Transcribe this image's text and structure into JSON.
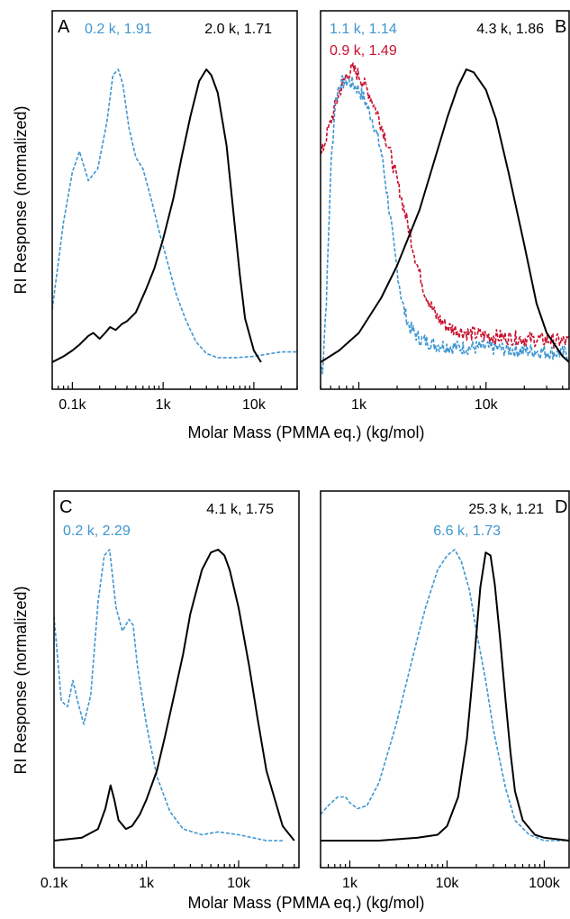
{
  "colors": {
    "black": "#000000",
    "blue": "#3e96d1",
    "red": "#c8102e"
  },
  "figure": {
    "x_label": "Molar Mass (PMMA eq.) (kg/mol)",
    "y_label": "RI Response (normalized)"
  },
  "chart_data": [
    {
      "panel": "A",
      "type": "line",
      "xscale": "log",
      "xlim": [
        0.06,
        30
      ],
      "ylim": [
        0,
        1
      ],
      "xticks": [
        {
          "v": 0.1,
          "label": "0.1k"
        },
        {
          "v": 1,
          "label": "1k"
        },
        {
          "v": 10,
          "label": "10k"
        }
      ],
      "annotations": [
        {
          "text": "0.2 k, 1.91",
          "color": "blue",
          "pos": "left"
        },
        {
          "text": "2.0 k, 1.71",
          "color": "black",
          "pos": "right"
        }
      ],
      "series": [
        {
          "color": "blue",
          "style": "dashed",
          "x": [
            0.06,
            0.08,
            0.1,
            0.12,
            0.15,
            0.19,
            0.24,
            0.28,
            0.32,
            0.36,
            0.42,
            0.5,
            0.6,
            0.75,
            0.9,
            1.1,
            1.4,
            1.8,
            2.3,
            3,
            4,
            6,
            10,
            20,
            30
          ],
          "y": [
            0.18,
            0.48,
            0.65,
            0.72,
            0.62,
            0.66,
            0.82,
            0.98,
            1.0,
            0.95,
            0.8,
            0.7,
            0.66,
            0.55,
            0.45,
            0.35,
            0.23,
            0.14,
            0.07,
            0.03,
            0.015,
            0.015,
            0.02,
            0.035,
            0.035
          ]
        },
        {
          "color": "black",
          "style": "solid",
          "x": [
            0.06,
            0.08,
            0.1,
            0.12,
            0.15,
            0.17,
            0.2,
            0.23,
            0.26,
            0.3,
            0.35,
            0.4,
            0.5,
            0.65,
            0.8,
            1,
            1.3,
            1.6,
            2,
            2.5,
            3,
            3.4,
            4,
            5,
            6,
            7,
            8,
            10,
            12
          ],
          "y": [
            0.0,
            0.02,
            0.04,
            0.06,
            0.09,
            0.1,
            0.08,
            0.1,
            0.12,
            0.11,
            0.13,
            0.14,
            0.17,
            0.25,
            0.32,
            0.42,
            0.56,
            0.7,
            0.84,
            0.96,
            1.0,
            0.98,
            0.92,
            0.74,
            0.5,
            0.3,
            0.15,
            0.04,
            0.0
          ]
        }
      ]
    },
    {
      "panel": "B",
      "type": "line",
      "xscale": "log",
      "xlim": [
        0.5,
        45
      ],
      "ylim": [
        0,
        1
      ],
      "xticks": [
        {
          "v": 1,
          "label": "1k"
        },
        {
          "v": 10,
          "label": "10k"
        }
      ],
      "annotations": [
        {
          "text": "1.1 k, 1.14",
          "color": "blue",
          "pos": "left"
        },
        {
          "text": "0.9 k, 1.49",
          "color": "red",
          "pos": "left2"
        },
        {
          "text": "4.3 k, 1.86",
          "color": "black",
          "pos": "right"
        }
      ],
      "series": [
        {
          "color": "blue",
          "style": "dashed",
          "noisy": true,
          "x": [
            0.52,
            0.56,
            0.6,
            0.65,
            0.7,
            0.8,
            0.9,
            1.0,
            1.1,
            1.3,
            1.5,
            1.7,
            1.9,
            2.2,
            2.5,
            3,
            4,
            6,
            10,
            20,
            45
          ],
          "y": [
            -0.02,
            0.25,
            0.65,
            0.88,
            0.95,
            0.96,
            0.95,
            0.93,
            0.9,
            0.82,
            0.72,
            0.55,
            0.38,
            0.2,
            0.12,
            0.08,
            0.06,
            0.05,
            0.05,
            0.04,
            0.03
          ]
        },
        {
          "color": "red",
          "style": "dashed",
          "noisy": true,
          "x": [
            0.5,
            0.6,
            0.7,
            0.8,
            0.9,
            1.0,
            1.2,
            1.4,
            1.7,
            2.0,
            2.4,
            2.8,
            3.3,
            4,
            5,
            7,
            10,
            20,
            45
          ],
          "y": [
            0.7,
            0.82,
            0.92,
            0.98,
            1.0,
            0.98,
            0.92,
            0.85,
            0.74,
            0.62,
            0.48,
            0.35,
            0.24,
            0.16,
            0.12,
            0.1,
            0.09,
            0.08,
            0.07
          ]
        },
        {
          "color": "black",
          "style": "solid",
          "x": [
            0.5,
            0.7,
            1,
            1.5,
            2,
            3,
            4,
            5,
            6,
            7,
            8,
            10,
            12,
            15,
            20,
            25,
            30,
            40,
            45
          ],
          "y": [
            0.0,
            0.04,
            0.1,
            0.22,
            0.33,
            0.52,
            0.7,
            0.84,
            0.94,
            1.0,
            0.99,
            0.93,
            0.83,
            0.65,
            0.4,
            0.2,
            0.1,
            0.02,
            0.0
          ]
        }
      ]
    },
    {
      "panel": "C",
      "type": "line",
      "xscale": "log",
      "xlim": [
        0.1,
        45
      ],
      "ylim": [
        0,
        1
      ],
      "xticks": [
        {
          "v": 0.1,
          "label": "0.1k"
        },
        {
          "v": 1,
          "label": "1k"
        },
        {
          "v": 10,
          "label": "10k"
        }
      ],
      "annotations": [
        {
          "text": "0.2 k, 2.29",
          "color": "blue",
          "pos": "left2"
        },
        {
          "text": "4.1 k, 1.75",
          "color": "black",
          "pos": "right"
        }
      ],
      "series": [
        {
          "color": "blue",
          "style": "dashed",
          "x": [
            0.1,
            0.12,
            0.14,
            0.16,
            0.18,
            0.21,
            0.25,
            0.3,
            0.35,
            0.4,
            0.47,
            0.55,
            0.65,
            0.72,
            0.8,
            1.0,
            1.3,
            1.8,
            2.5,
            4,
            6,
            10,
            20,
            30
          ],
          "y": [
            0.77,
            0.48,
            0.46,
            0.55,
            0.48,
            0.4,
            0.5,
            0.82,
            0.98,
            1.0,
            0.8,
            0.72,
            0.76,
            0.74,
            0.6,
            0.4,
            0.22,
            0.1,
            0.04,
            0.02,
            0.03,
            0.02,
            0.0,
            0.0
          ]
        },
        {
          "color": "black",
          "style": "solid",
          "x": [
            0.1,
            0.2,
            0.3,
            0.36,
            0.41,
            0.45,
            0.5,
            0.6,
            0.7,
            0.85,
            1.0,
            1.3,
            1.6,
            2,
            2.5,
            3,
            4,
            5,
            6,
            7,
            8,
            10,
            13,
            16,
            20,
            30,
            40
          ],
          "y": [
            0.0,
            0.01,
            0.04,
            0.11,
            0.19,
            0.14,
            0.07,
            0.04,
            0.05,
            0.09,
            0.14,
            0.24,
            0.36,
            0.5,
            0.64,
            0.78,
            0.93,
            0.99,
            1.0,
            0.98,
            0.93,
            0.8,
            0.6,
            0.42,
            0.24,
            0.05,
            0.0
          ]
        }
      ]
    },
    {
      "panel": "D",
      "type": "line",
      "xscale": "log",
      "xlim": [
        0.5,
        180
      ],
      "ylim": [
        0,
        1
      ],
      "xticks": [
        {
          "v": 1,
          "label": "1k"
        },
        {
          "v": 10,
          "label": "10k"
        },
        {
          "v": 100,
          "label": "100k"
        }
      ],
      "annotations": [
        {
          "text": "25.3 k, 1.21",
          "color": "black",
          "pos": "right"
        },
        {
          "text": "6.6 k, 1.73",
          "color": "blue",
          "pos": "center2"
        }
      ],
      "series": [
        {
          "color": "blue",
          "style": "dashed",
          "x": [
            0.5,
            0.6,
            0.75,
            0.9,
            1.0,
            1.2,
            1.5,
            2,
            3,
            4,
            5,
            6,
            7,
            8,
            10,
            12,
            14,
            17,
            20,
            25,
            30,
            40,
            50,
            70,
            100,
            180
          ],
          "y": [
            0.09,
            0.12,
            0.15,
            0.15,
            0.13,
            0.11,
            0.12,
            0.2,
            0.4,
            0.57,
            0.7,
            0.8,
            0.87,
            0.93,
            0.98,
            1.0,
            0.96,
            0.86,
            0.72,
            0.55,
            0.38,
            0.18,
            0.07,
            0.02,
            0.0,
            0.0
          ]
        },
        {
          "color": "black",
          "style": "solid",
          "x": [
            0.5,
            1,
            2,
            5,
            8,
            10,
            13,
            16,
            19,
            22,
            25,
            28,
            31,
            35,
            40,
            45,
            50,
            60,
            80,
            100,
            180
          ],
          "y": [
            0.0,
            0.0,
            0.0,
            0.01,
            0.02,
            0.05,
            0.15,
            0.35,
            0.62,
            0.87,
            0.99,
            0.98,
            0.88,
            0.7,
            0.48,
            0.3,
            0.17,
            0.07,
            0.02,
            0.01,
            0.0
          ]
        }
      ]
    }
  ]
}
